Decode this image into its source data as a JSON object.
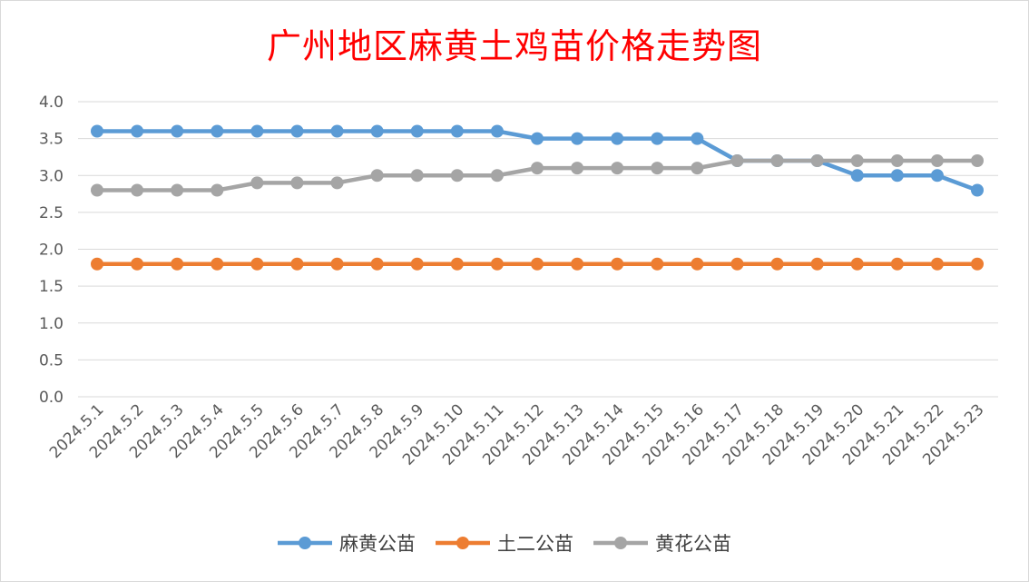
{
  "chart_data": {
    "type": "line",
    "title": "广州地区麻黄土鸡苗价格走势图",
    "xlabel": "",
    "ylabel": "",
    "ylim": [
      0,
      4.0
    ],
    "yticks": [
      "0.0",
      "0.5",
      "1.0",
      "1.5",
      "2.0",
      "2.5",
      "3.0",
      "3.5",
      "4.0"
    ],
    "grid": true,
    "legend_position": "bottom",
    "categories": [
      "2024.5.1",
      "2024.5.2",
      "2024.5.3",
      "2024.5.4",
      "2024.5.5",
      "2024.5.6",
      "2024.5.7",
      "2024.5.8",
      "2024.5.9",
      "2024.5.10",
      "2024.5.11",
      "2024.5.12",
      "2024.5.13",
      "2024.5.14",
      "2024.5.15",
      "2024.5.16",
      "2024.5.17",
      "2024.5.18",
      "2024.5.19",
      "2024.5.20",
      "2024.5.21",
      "2024.5.22",
      "2024.5.23"
    ],
    "series": [
      {
        "name": "麻黄公苗",
        "color": "#5b9bd5",
        "values": [
          3.6,
          3.6,
          3.6,
          3.6,
          3.6,
          3.6,
          3.6,
          3.6,
          3.6,
          3.6,
          3.6,
          3.5,
          3.5,
          3.5,
          3.5,
          3.5,
          3.2,
          3.2,
          3.2,
          3.0,
          3.0,
          3.0,
          2.8
        ]
      },
      {
        "name": "土二公苗",
        "color": "#ed7d31",
        "values": [
          1.8,
          1.8,
          1.8,
          1.8,
          1.8,
          1.8,
          1.8,
          1.8,
          1.8,
          1.8,
          1.8,
          1.8,
          1.8,
          1.8,
          1.8,
          1.8,
          1.8,
          1.8,
          1.8,
          1.8,
          1.8,
          1.8,
          1.8
        ]
      },
      {
        "name": "黄花公苗",
        "color": "#a5a5a5",
        "values": [
          2.8,
          2.8,
          2.8,
          2.8,
          2.9,
          2.9,
          2.9,
          3.0,
          3.0,
          3.0,
          3.0,
          3.1,
          3.1,
          3.1,
          3.1,
          3.1,
          3.2,
          3.2,
          3.2,
          3.2,
          3.2,
          3.2,
          3.2
        ]
      }
    ]
  }
}
